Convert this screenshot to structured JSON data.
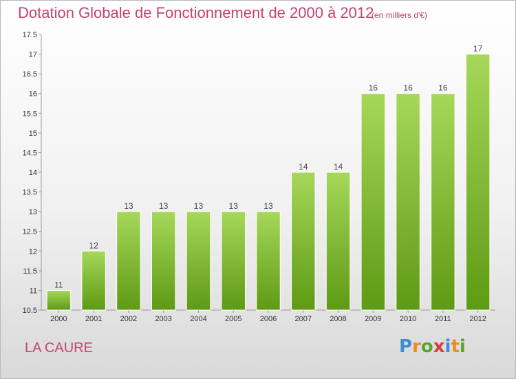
{
  "header": {
    "title": "Dotation Globale de Fonctionnement de 2000 à 2012",
    "subtitle": "(en milliers d'€)"
  },
  "footer": {
    "commune": "LA CAURE",
    "logo_letters": [
      "P",
      "r",
      "o",
      "x",
      "i",
      "t",
      "i"
    ]
  },
  "colors": {
    "title": "#c8426e",
    "bar_top": "#a6d85a",
    "bar_bottom": "#5e9a14",
    "logo_letters": [
      "#3c8ed6",
      "#f08a1c",
      "#5aa532",
      "#d63c3c",
      "#3c8ed6",
      "#f08a1c",
      "#5aa532"
    ]
  },
  "chart_data": {
    "type": "bar",
    "categories": [
      "2000",
      "2001",
      "2002",
      "2003",
      "2004",
      "2005",
      "2006",
      "2007",
      "2008",
      "2009",
      "2010",
      "2011",
      "2012"
    ],
    "values": [
      11,
      12,
      13,
      13,
      13,
      13,
      13,
      14,
      14,
      16,
      16,
      16,
      17
    ],
    "value_labels": [
      "11",
      "12",
      "13",
      "13",
      "13",
      "13",
      "13",
      "14",
      "14",
      "16",
      "16",
      "16",
      "17"
    ],
    "ylim": [
      10.5,
      17.5
    ],
    "yticks": [
      "10.5",
      "11",
      "11.5",
      "12",
      "12.5",
      "13",
      "13.5",
      "14",
      "14.5",
      "15",
      "15.5",
      "16",
      "16.5",
      "17",
      "17.5"
    ],
    "grid": false
  }
}
